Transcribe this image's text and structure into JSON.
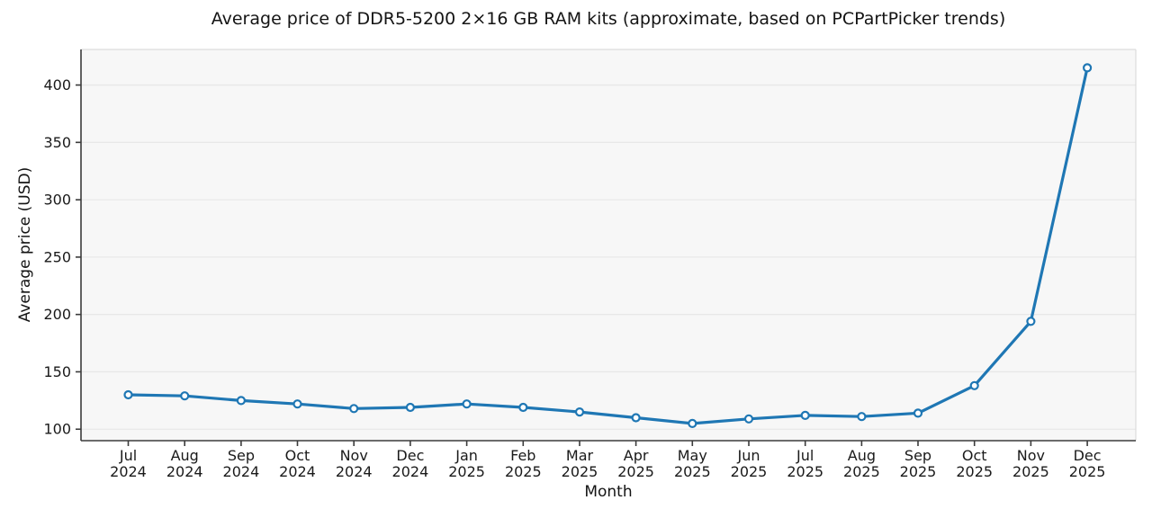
{
  "chart_data": {
    "type": "line",
    "title": "Average price of DDR5-5200 2×16 GB RAM kits (approximate, based on PCPartPicker trends)",
    "xlabel": "Month",
    "ylabel": "Average price (USD)",
    "categories": [
      {
        "month": "Jul",
        "year": "2024"
      },
      {
        "month": "Aug",
        "year": "2024"
      },
      {
        "month": "Sep",
        "year": "2024"
      },
      {
        "month": "Oct",
        "year": "2024"
      },
      {
        "month": "Nov",
        "year": "2024"
      },
      {
        "month": "Dec",
        "year": "2024"
      },
      {
        "month": "Jan",
        "year": "2025"
      },
      {
        "month": "Feb",
        "year": "2025"
      },
      {
        "month": "Mar",
        "year": "2025"
      },
      {
        "month": "Apr",
        "year": "2025"
      },
      {
        "month": "May",
        "year": "2025"
      },
      {
        "month": "Jun",
        "year": "2025"
      },
      {
        "month": "Jul",
        "year": "2025"
      },
      {
        "month": "Aug",
        "year": "2025"
      },
      {
        "month": "Sep",
        "year": "2025"
      },
      {
        "month": "Oct",
        "year": "2025"
      },
      {
        "month": "Nov",
        "year": "2025"
      },
      {
        "month": "Dec",
        "year": "2025"
      }
    ],
    "series": [
      {
        "name": "average-price-usd",
        "values": [
          130,
          129,
          125,
          122,
          118,
          119,
          122,
          119,
          115,
          110,
          105,
          109,
          112,
          111,
          114,
          138,
          194,
          415
        ]
      }
    ],
    "yticks": [
      100,
      150,
      200,
      250,
      300,
      350,
      400
    ],
    "ylim": [
      90,
      431
    ],
    "grid": true,
    "legend": "none",
    "colors": {
      "line": "#1f77b4",
      "marker_face": "#ffffff",
      "plot_background": "#f7f7f7",
      "grid_line": "#e8e8e8",
      "spine_dark": "#3b3b3b",
      "spine_light": "#d6d6d6",
      "text": "#1a1a1a"
    }
  }
}
